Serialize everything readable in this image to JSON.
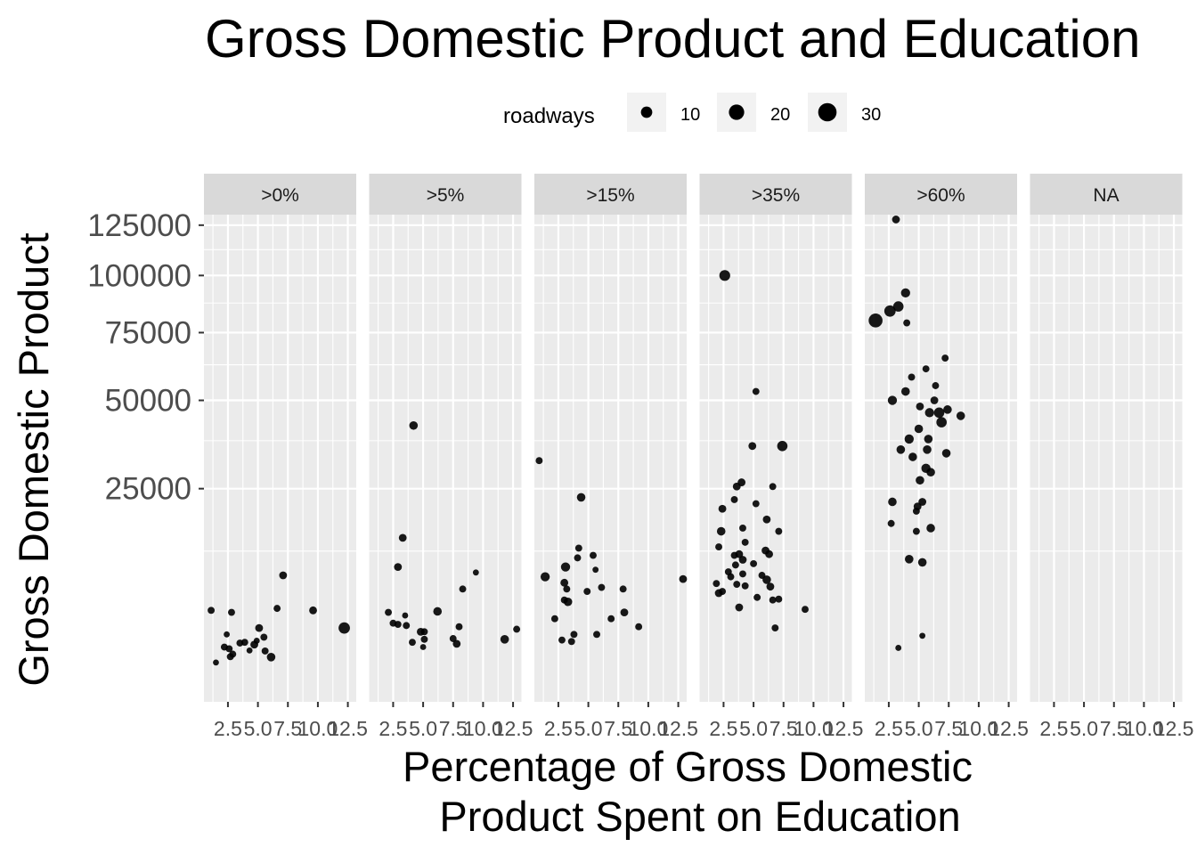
{
  "chart_data": {
    "type": "scatter",
    "title": "Gross Domestic Product and Education",
    "xlabel_lines": [
      "Percentage of Gross Domestic",
      "Product Spent on Education"
    ],
    "ylabel": "Gross Domestic Product",
    "y_scale": "sqrt",
    "ylim": [
      0,
      150000
    ],
    "y_ticks": [
      25000,
      50000,
      75000,
      100000,
      125000
    ],
    "y_tick_labels": [
      "25000",
      "50000",
      "75000",
      "100000",
      "125000"
    ],
    "xlim": [
      0.5,
      13.2
    ],
    "x_ticks": [
      2.5,
      5.0,
      7.5,
      10.0,
      12.5
    ],
    "x_tick_labels": [
      "2.5",
      "5.0",
      "7.5",
      "10.0",
      "12.5"
    ],
    "facet_variable": "",
    "panels": [
      ">0%",
      ">5%",
      ">15%",
      ">35%",
      ">60%",
      "NA"
    ],
    "size_legend": {
      "title": "roadways",
      "position": "top",
      "breaks": [
        10,
        20,
        30
      ],
      "labels": [
        "10",
        "20",
        "30"
      ]
    },
    "grid": true,
    "point_color": "#000000",
    "panel_background": "#ebebeb",
    "strip_background": "#d9d9d9",
    "series": [
      {
        "panel": ">0%",
        "points": [
          [
            1.1,
            4600,
            3
          ],
          [
            2.8,
            4400,
            3
          ],
          [
            2.4,
            2500,
            2
          ],
          [
            5.1,
            3000,
            4
          ],
          [
            6.6,
            4800,
            3
          ],
          [
            7.1,
            8800,
            4
          ],
          [
            9.6,
            4600,
            4
          ],
          [
            12.2,
            3000,
            10
          ],
          [
            5.5,
            2300,
            3
          ],
          [
            4.9,
            2050,
            2
          ],
          [
            3.9,
            1950,
            3
          ],
          [
            3.5,
            1900,
            3
          ],
          [
            4.7,
            1800,
            4
          ],
          [
            2.2,
            1650,
            3
          ],
          [
            2.6,
            1550,
            3
          ],
          [
            4.3,
            1450,
            2
          ],
          [
            5.6,
            1420,
            3
          ],
          [
            2.9,
            1250,
            3
          ],
          [
            2.7,
            1120,
            3
          ],
          [
            6.1,
            1100,
            5
          ],
          [
            1.5,
            850,
            2
          ]
        ]
      },
      {
        "panel": ">5%",
        "points": [
          [
            2.1,
            4400,
            3
          ],
          [
            2.9,
            10000,
            4
          ],
          [
            3.3,
            14800,
            4
          ],
          [
            4.2,
            42000,
            5
          ],
          [
            3.5,
            4100,
            2
          ],
          [
            6.2,
            4500,
            5
          ],
          [
            9.4,
            9200,
            2
          ],
          [
            8.3,
            7000,
            3
          ],
          [
            2.5,
            3400,
            3
          ],
          [
            2.9,
            3300,
            3
          ],
          [
            3.6,
            3200,
            3
          ],
          [
            4.8,
            2700,
            4
          ],
          [
            5.1,
            2700,
            3
          ],
          [
            8.0,
            3100,
            3
          ],
          [
            12.8,
            2900,
            3
          ],
          [
            5.1,
            2150,
            3
          ],
          [
            4.1,
            1950,
            3
          ],
          [
            7.5,
            2200,
            3
          ],
          [
            7.8,
            1850,
            4
          ],
          [
            11.8,
            2150,
            5
          ],
          [
            5.0,
            1650,
            2
          ]
        ]
      },
      {
        "panel": ">15%",
        "points": [
          [
            0.9,
            32000,
            3
          ],
          [
            4.4,
            23000,
            5
          ],
          [
            4.1,
            11400,
            3
          ],
          [
            4.2,
            13000,
            3
          ],
          [
            5.4,
            11800,
            3
          ],
          [
            5.6,
            9600,
            2
          ],
          [
            2.2,
            3800,
            3
          ],
          [
            3.1,
            10000,
            6
          ],
          [
            1.4,
            8600,
            6
          ],
          [
            3.0,
            7800,
            4
          ],
          [
            3.2,
            7000,
            3
          ],
          [
            4.9,
            6700,
            3
          ],
          [
            6.1,
            7200,
            3
          ],
          [
            7.9,
            7000,
            3
          ],
          [
            12.9,
            8300,
            4
          ],
          [
            3.3,
            5500,
            5
          ],
          [
            3.0,
            5700,
            3
          ],
          [
            6.9,
            3800,
            3
          ],
          [
            8.0,
            4400,
            4
          ],
          [
            9.2,
            3100,
            3
          ],
          [
            3.8,
            2500,
            3
          ],
          [
            5.7,
            2500,
            3
          ],
          [
            2.8,
            2100,
            3
          ],
          [
            3.6,
            2000,
            3
          ]
        ]
      },
      {
        "panel": ">35%",
        "points": [
          [
            2.6,
            100000,
            9
          ],
          [
            5.2,
            53000,
            3
          ],
          [
            4.9,
            36000,
            4
          ],
          [
            7.4,
            36000,
            8
          ],
          [
            3.6,
            25500,
            4
          ],
          [
            4.0,
            26500,
            4
          ],
          [
            6.6,
            25500,
            3
          ],
          [
            3.4,
            22500,
            3
          ],
          [
            5.2,
            21600,
            3
          ],
          [
            2.4,
            20500,
            4
          ],
          [
            2.3,
            16000,
            5
          ],
          [
            4.1,
            16600,
            3
          ],
          [
            4.3,
            14000,
            3
          ],
          [
            6.1,
            18300,
            4
          ],
          [
            7.1,
            16000,
            3
          ],
          [
            2.1,
            13200,
            3
          ],
          [
            3.4,
            11800,
            3
          ],
          [
            3.8,
            12000,
            4
          ],
          [
            4.1,
            11100,
            4
          ],
          [
            6.0,
            12600,
            4
          ],
          [
            6.3,
            12000,
            4
          ],
          [
            5.0,
            10500,
            3
          ],
          [
            3.5,
            10300,
            3
          ],
          [
            2.9,
            9300,
            3
          ],
          [
            4.1,
            9000,
            3
          ],
          [
            3.1,
            8600,
            3
          ],
          [
            5.7,
            8800,
            3
          ],
          [
            6.1,
            8200,
            5
          ],
          [
            1.9,
            7700,
            3
          ],
          [
            3.6,
            7600,
            3
          ],
          [
            4.3,
            7400,
            3
          ],
          [
            6.4,
            7300,
            4
          ],
          [
            2.1,
            6500,
            4
          ],
          [
            2.4,
            6700,
            3
          ],
          [
            5.3,
            6000,
            3
          ],
          [
            6.6,
            5700,
            3
          ],
          [
            7.1,
            5800,
            3
          ],
          [
            3.8,
            4900,
            4
          ],
          [
            9.3,
            4700,
            3
          ],
          [
            6.8,
            3000,
            3
          ]
        ]
      },
      {
        "panel": ">60%",
        "points": [
          [
            1.4,
            80000,
            16
          ],
          [
            2.6,
            84000,
            10
          ],
          [
            3.3,
            86000,
            8
          ],
          [
            3.9,
            92000,
            6
          ],
          [
            3.1,
            128000,
            4
          ],
          [
            4.0,
            79000,
            3
          ],
          [
            5.6,
            61000,
            3
          ],
          [
            7.2,
            65000,
            3
          ],
          [
            4.4,
            58000,
            3
          ],
          [
            3.9,
            53000,
            5
          ],
          [
            2.8,
            50000,
            6
          ],
          [
            6.4,
            55000,
            3
          ],
          [
            6.3,
            50000,
            4
          ],
          [
            5.1,
            48000,
            4
          ],
          [
            5.9,
            46000,
            6
          ],
          [
            6.7,
            46000,
            8
          ],
          [
            7.4,
            47000,
            5
          ],
          [
            8.5,
            45000,
            5
          ],
          [
            6.9,
            43000,
            8
          ],
          [
            5.0,
            41000,
            5
          ],
          [
            4.2,
            38000,
            6
          ],
          [
            5.8,
            38000,
            5
          ],
          [
            3.5,
            35000,
            5
          ],
          [
            5.7,
            35000,
            5
          ],
          [
            7.3,
            34000,
            5
          ],
          [
            4.5,
            33000,
            5
          ],
          [
            5.6,
            30000,
            6
          ],
          [
            6.0,
            29000,
            5
          ],
          [
            5.1,
            27000,
            5
          ],
          [
            2.8,
            22000,
            5
          ],
          [
            4.9,
            21000,
            4
          ],
          [
            5.3,
            22000,
            4
          ],
          [
            4.8,
            20000,
            3
          ],
          [
            2.7,
            17500,
            3
          ],
          [
            6.0,
            16600,
            5
          ],
          [
            4.8,
            16000,
            3
          ],
          [
            4.2,
            11200,
            5
          ],
          [
            5.3,
            10700,
            5
          ],
          [
            5.3,
            2400,
            2
          ],
          [
            3.3,
            1600,
            2
          ]
        ]
      },
      {
        "panel": "NA",
        "points": []
      }
    ]
  }
}
